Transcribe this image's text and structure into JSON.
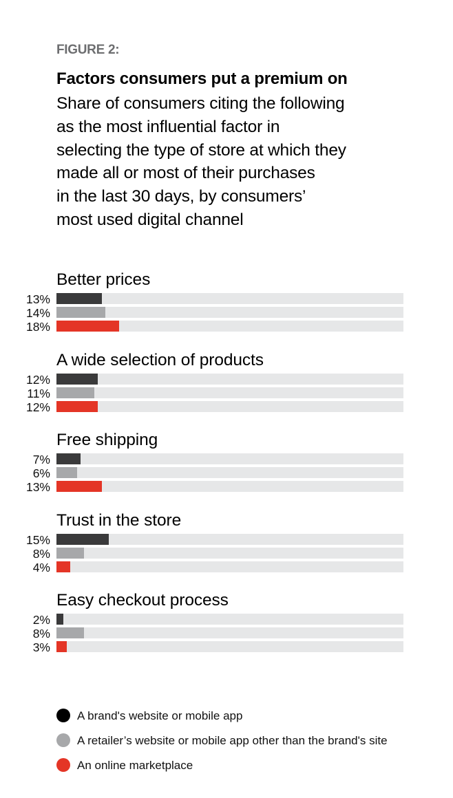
{
  "figure_label": "FIGURE 2:",
  "title": "Factors consumers put a premium on",
  "subtitle_lines": [
    "Share of consumers citing the following",
    "as the most influential factor in",
    "selecting the type of store at which they",
    "made all or most of their purchases",
    "in the last 30 days, by consumers’",
    "most used digital channel"
  ],
  "colors": {
    "brand": "#3a3a3b",
    "retailer": "#a7a8aa",
    "marketplace": "#e43526",
    "track": "#e6e7e8"
  },
  "groups": [
    {
      "label": "Better prices",
      "values": [
        {
          "pct": "13%"
        },
        {
          "pct": "14%"
        },
        {
          "pct": "18%"
        }
      ]
    },
    {
      "label": "A wide selection of products",
      "values": [
        {
          "pct": "12%"
        },
        {
          "pct": "11%"
        },
        {
          "pct": "12%"
        }
      ]
    },
    {
      "label": "Free shipping",
      "values": [
        {
          "pct": "7%"
        },
        {
          "pct": "6%"
        },
        {
          "pct": "13%"
        }
      ]
    },
    {
      "label": "Trust in the store",
      "values": [
        {
          "pct": "15%"
        },
        {
          "pct": "8%"
        },
        {
          "pct": "4%"
        }
      ]
    },
    {
      "label": "Easy checkout process",
      "values": [
        {
          "pct": "2%"
        },
        {
          "pct": "8%"
        },
        {
          "pct": "3%"
        }
      ]
    }
  ],
  "legend": [
    {
      "label": "A brand's website or mobile app",
      "color": "#000000"
    },
    {
      "label": "A retailer’s website or mobile app other than the brand's site",
      "color": "#a7a8aa"
    },
    {
      "label": "An online marketplace",
      "color": "#e43526"
    }
  ],
  "chart_data": {
    "type": "bar",
    "orientation": "horizontal",
    "title": "Factors consumers put a premium on",
    "subtitle": "Share of consumers citing the following as the most influential factor in selecting the type of store at which they made all or most of their purchases in the last 30 days, by consumers’ most used digital channel",
    "categories": [
      "Better prices",
      "A wide selection of products",
      "Free shipping",
      "Trust in the store",
      "Easy checkout process"
    ],
    "series": [
      {
        "name": "A brand's website or mobile app",
        "color": "#3a3a3b",
        "values": [
          13,
          12,
          7,
          15,
          2
        ]
      },
      {
        "name": "A retailer’s website or mobile app other than the brand's site",
        "color": "#a7a8aa",
        "values": [
          14,
          11,
          6,
          8,
          8
        ]
      },
      {
        "name": "An online marketplace",
        "color": "#e43526",
        "values": [
          18,
          12,
          13,
          4,
          3
        ]
      }
    ],
    "xlabel": "",
    "ylabel": "",
    "xlim": [
      0,
      100
    ],
    "unit": "%",
    "grid": false,
    "legend_position": "bottom"
  }
}
